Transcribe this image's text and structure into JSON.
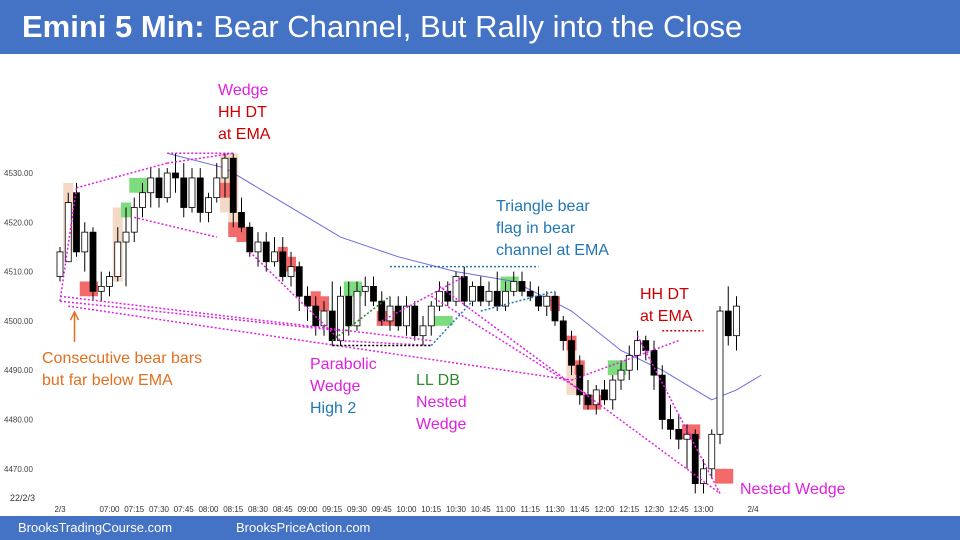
{
  "header": {
    "title_bold": "Emini 5 Min:",
    "title_rest": " Bear Channel, But Rally into the Close"
  },
  "footer": {
    "left": "BrooksTradingCourse.com",
    "right": "BrooksPriceAction.com"
  },
  "colors": {
    "header_bg": "#4472c4",
    "bull_fill": "#ffffff",
    "bear_fill": "#000000",
    "ema": "#6a6adf",
    "magenta": "#e020e0",
    "red": "#cc0000",
    "blue": "#1f77b4",
    "orange": "#e07020",
    "green": "#2e8b2e"
  },
  "annotations": {
    "wedge_top": [
      "Wedge",
      "HH DT",
      "at EMA"
    ],
    "triangle": [
      "Triangle bear",
      "flag in bear",
      "channel at EMA"
    ],
    "hh_dt": [
      "HH DT",
      "at EMA"
    ],
    "consecutive": [
      "Consecutive bear bars",
      "but far below EMA"
    ],
    "parabolic": [
      "Parabolic",
      "Wedge",
      "High 2"
    ],
    "lldb": [
      "LL DB",
      "Nested",
      "Wedge"
    ],
    "nested": "Nested Wedge"
  },
  "chart_data": {
    "type": "candlestick",
    "instrument": "Emini",
    "timeframe": "5 Min",
    "date_label": "22/2/3",
    "ylim": [
      4463,
      4536
    ],
    "y_ticks": [
      4470,
      4480,
      4490,
      4500,
      4510,
      4520,
      4530
    ],
    "y_tick_labels": [
      "4470.00",
      "4480.00",
      "4490.00",
      "4500.00",
      "4510.00",
      "4520.00",
      "4530.00"
    ],
    "x_tick_labels": [
      "2/3",
      "07:00",
      "07:15",
      "07:30",
      "07:45",
      "08:00",
      "08:15",
      "08:30",
      "08:45",
      "09:00",
      "09:15",
      "09:30",
      "09:45",
      "10:00",
      "10:15",
      "10:30",
      "10:45",
      "11:00",
      "11:15",
      "11:30",
      "11:45",
      "12:00",
      "12:15",
      "12:30",
      "12:45",
      "13:00",
      "2/4"
    ],
    "x_tick_bars": [
      0,
      6,
      9,
      12,
      15,
      18,
      21,
      24,
      27,
      30,
      33,
      36,
      39,
      42,
      45,
      48,
      51,
      54,
      57,
      60,
      63,
      66,
      69,
      72,
      75,
      78,
      84
    ],
    "ohlc": [
      [
        4509,
        4515,
        4508,
        4514
      ],
      [
        4512,
        4526,
        4512,
        4524
      ],
      [
        4526,
        4528,
        4513,
        4514
      ],
      [
        4514,
        4520,
        4510,
        4518
      ],
      [
        4518,
        4519,
        4504,
        4506
      ],
      [
        4506,
        4510,
        4504,
        4507
      ],
      [
        4507,
        4510,
        4505,
        4509
      ],
      [
        4509,
        4519,
        4508,
        4516
      ],
      [
        4516,
        4523,
        4507,
        4518
      ],
      [
        4518,
        4525,
        4516,
        4523
      ],
      [
        4523,
        4528,
        4521,
        4526
      ],
      [
        4526,
        4531,
        4523,
        4529
      ],
      [
        4529,
        4531,
        4523,
        4525
      ],
      [
        4525,
        4531,
        4524,
        4530
      ],
      [
        4530,
        4534,
        4526,
        4529
      ],
      [
        4529,
        4532,
        4521,
        4523
      ],
      [
        4523,
        4531,
        4522,
        4529
      ],
      [
        4529,
        4531,
        4520,
        4522
      ],
      [
        4522,
        4526,
        4520,
        4525
      ],
      [
        4525,
        4532,
        4524,
        4529
      ],
      [
        4529,
        4534,
        4525,
        4533
      ],
      [
        4533,
        4534,
        4519,
        4522
      ],
      [
        4522,
        4525,
        4518,
        4519
      ],
      [
        4519,
        4520,
        4513,
        4514
      ],
      [
        4514,
        4518,
        4511,
        4516
      ],
      [
        4516,
        4518,
        4510,
        4512
      ],
      [
        4512,
        4517,
        4511,
        4514
      ],
      [
        4514,
        4517,
        4508,
        4509
      ],
      [
        4509,
        4514,
        4507,
        4511
      ],
      [
        4511,
        4512,
        4502,
        4505
      ],
      [
        4505,
        4507,
        4500,
        4503
      ],
      [
        4503,
        4505,
        4497,
        4499
      ],
      [
        4499,
        4504,
        4497,
        4502
      ],
      [
        4502,
        4508,
        4495,
        4496
      ],
      [
        4496,
        4507,
        4495,
        4505
      ],
      [
        4505,
        4508,
        4497,
        4499
      ],
      [
        4499,
        4508,
        4498,
        4506
      ],
      [
        4506,
        4509,
        4503,
        4507
      ],
      [
        4507,
        4509,
        4503,
        4504
      ],
      [
        4504,
        4506,
        4499,
        4500
      ],
      [
        4500,
        4505,
        4498,
        4503
      ],
      [
        4503,
        4505,
        4498,
        4499
      ],
      [
        4499,
        4505,
        4497,
        4503
      ],
      [
        4503,
        4504,
        4496,
        4497
      ],
      [
        4497,
        4501,
        4495,
        4499
      ],
      [
        4499,
        4504,
        4497,
        4503
      ],
      [
        4503,
        4508,
        4502,
        4506
      ],
      [
        4506,
        4508,
        4503,
        4504
      ],
      [
        4504,
        4510,
        4503,
        4509
      ],
      [
        4509,
        4511,
        4503,
        4504
      ],
      [
        4504,
        4508,
        4503,
        4507
      ],
      [
        4507,
        4509,
        4503,
        4504
      ],
      [
        4504,
        4508,
        4503,
        4506
      ],
      [
        4506,
        4510,
        4502,
        4503
      ],
      [
        4503,
        4508,
        4502,
        4506
      ],
      [
        4506,
        4510,
        4505,
        4508
      ],
      [
        4508,
        4510,
        4505,
        4506
      ],
      [
        4506,
        4508,
        4504,
        4505
      ],
      [
        4505,
        4507,
        4502,
        4503
      ],
      [
        4503,
        4506,
        4501,
        4505
      ],
      [
        4505,
        4506,
        4499,
        4500
      ],
      [
        4500,
        4501,
        4494,
        4496
      ],
      [
        4496,
        4498,
        4489,
        4491
      ],
      [
        4491,
        4493,
        4483,
        4485
      ],
      [
        4485,
        4488,
        4482,
        4483
      ],
      [
        4483,
        4487,
        4481,
        4486
      ],
      [
        4486,
        4488,
        4483,
        4484
      ],
      [
        4484,
        4489,
        4482,
        4488
      ],
      [
        4488,
        4492,
        4486,
        4490
      ],
      [
        4490,
        4495,
        4488,
        4493
      ],
      [
        4493,
        4498,
        4490,
        4496
      ],
      [
        4496,
        4497,
        4492,
        4494
      ],
      [
        4494,
        4496,
        4486,
        4489
      ],
      [
        4489,
        4491,
        4478,
        4480
      ],
      [
        4480,
        4483,
        4476,
        4478
      ],
      [
        4478,
        4481,
        4474,
        4476
      ],
      [
        4476,
        4479,
        4470,
        4477
      ],
      [
        4477,
        4478,
        4465,
        4467
      ],
      [
        4467,
        4472,
        4465,
        4470
      ],
      [
        4470,
        4478,
        4468,
        4477
      ],
      [
        4477,
        4503,
        4475,
        4502
      ],
      [
        4502,
        4507,
        4495,
        4497
      ],
      [
        4497,
        4505,
        4494,
        4503
      ]
    ]
  }
}
